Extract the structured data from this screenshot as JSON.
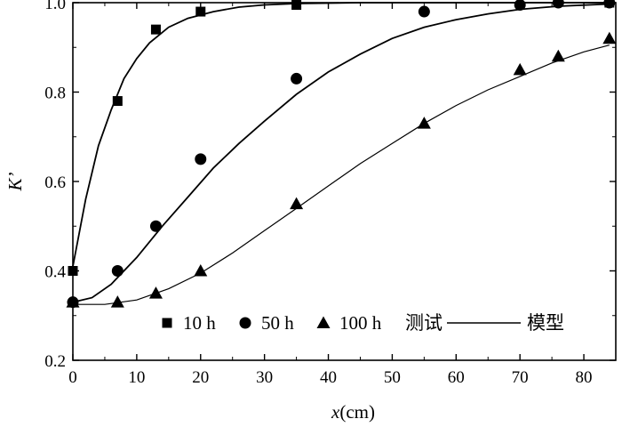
{
  "chart_data": {
    "type": "scatter",
    "xlabel_var": "x",
    "xlabel_unit": "(cm)",
    "ylabel": "K’",
    "xlim": [
      0,
      85
    ],
    "ylim": [
      0.2,
      1.0
    ],
    "xticks": [
      0,
      10,
      20,
      30,
      40,
      50,
      60,
      70,
      80
    ],
    "yticks": [
      0.2,
      0.4,
      0.6,
      0.8,
      1.0
    ],
    "x_tick_labels": [
      "0",
      "10",
      "20",
      "30",
      "40",
      "50",
      "60",
      "70",
      "80"
    ],
    "y_tick_labels": [
      "0.2",
      "0.4",
      "0.6",
      "0.8",
      "1.0"
    ],
    "grid": false,
    "legend_position": "bottom-right",
    "legend": {
      "measured_label": "测试",
      "model_label": "模型"
    },
    "series": [
      {
        "name": "10 h",
        "marker": "square",
        "measured": [
          [
            0,
            0.4
          ],
          [
            7,
            0.78
          ],
          [
            13,
            0.94
          ],
          [
            20,
            0.98
          ],
          [
            35,
            0.995
          ],
          [
            84,
            1.0
          ]
        ],
        "model": [
          [
            0,
            0.41
          ],
          [
            2,
            0.56
          ],
          [
            4,
            0.68
          ],
          [
            6,
            0.76
          ],
          [
            8,
            0.83
          ],
          [
            10,
            0.875
          ],
          [
            12,
            0.91
          ],
          [
            15,
            0.945
          ],
          [
            18,
            0.965
          ],
          [
            22,
            0.98
          ],
          [
            26,
            0.99
          ],
          [
            30,
            0.995
          ],
          [
            35,
            0.998
          ],
          [
            45,
            1.0
          ],
          [
            60,
            1.0
          ],
          [
            84,
            1.0
          ]
        ]
      },
      {
        "name": "50 h",
        "marker": "circle",
        "measured": [
          [
            0,
            0.33
          ],
          [
            7,
            0.4
          ],
          [
            13,
            0.5
          ],
          [
            20,
            0.65
          ],
          [
            35,
            0.83
          ],
          [
            55,
            0.98
          ],
          [
            70,
            0.995
          ],
          [
            76,
            1.0
          ],
          [
            84,
            1.0
          ]
        ],
        "model": [
          [
            0,
            0.33
          ],
          [
            3,
            0.34
          ],
          [
            6,
            0.37
          ],
          [
            10,
            0.43
          ],
          [
            14,
            0.5
          ],
          [
            18,
            0.565
          ],
          [
            22,
            0.63
          ],
          [
            26,
            0.685
          ],
          [
            30,
            0.735
          ],
          [
            35,
            0.795
          ],
          [
            40,
            0.845
          ],
          [
            45,
            0.885
          ],
          [
            50,
            0.92
          ],
          [
            55,
            0.945
          ],
          [
            60,
            0.962
          ],
          [
            65,
            0.975
          ],
          [
            70,
            0.985
          ],
          [
            76,
            0.992
          ],
          [
            84,
            0.997
          ]
        ]
      },
      {
        "name": "100 h",
        "marker": "triangle",
        "measured": [
          [
            0,
            0.33
          ],
          [
            7,
            0.33
          ],
          [
            13,
            0.35
          ],
          [
            20,
            0.4
          ],
          [
            35,
            0.55
          ],
          [
            55,
            0.73
          ],
          [
            70,
            0.85
          ],
          [
            76,
            0.88
          ],
          [
            84,
            0.92
          ]
        ],
        "model": [
          [
            0,
            0.325
          ],
          [
            5,
            0.325
          ],
          [
            10,
            0.335
          ],
          [
            15,
            0.36
          ],
          [
            20,
            0.395
          ],
          [
            25,
            0.44
          ],
          [
            30,
            0.49
          ],
          [
            35,
            0.54
          ],
          [
            40,
            0.59
          ],
          [
            45,
            0.64
          ],
          [
            50,
            0.685
          ],
          [
            55,
            0.73
          ],
          [
            60,
            0.77
          ],
          [
            65,
            0.805
          ],
          [
            70,
            0.835
          ],
          [
            75,
            0.865
          ],
          [
            80,
            0.89
          ],
          [
            84,
            0.905
          ]
        ]
      }
    ]
  }
}
